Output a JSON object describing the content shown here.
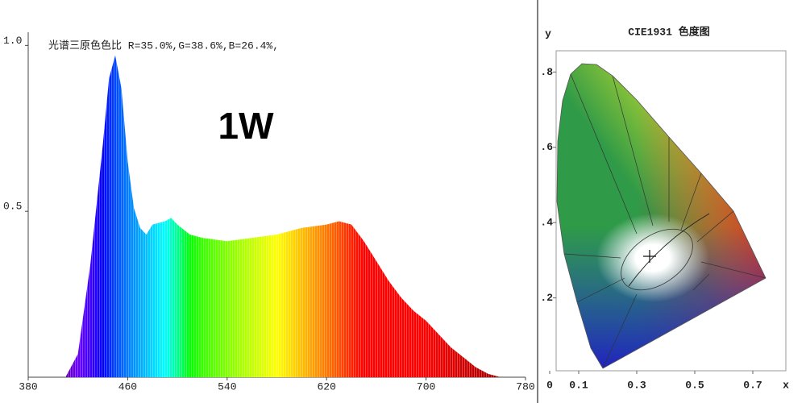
{
  "chart_data": [
    {
      "type": "area",
      "title": "光谱三原色色比  R=35.0%,G=38.6%,B=26.4%,",
      "annotation": "1W",
      "x": [
        400,
        410,
        420,
        430,
        440,
        445,
        450,
        455,
        460,
        465,
        470,
        475,
        480,
        490,
        495,
        500,
        510,
        520,
        540,
        560,
        580,
        600,
        620,
        630,
        640,
        650,
        660,
        670,
        680,
        690,
        700,
        710,
        720,
        730,
        740,
        750,
        760,
        770
      ],
      "values": [
        0,
        0,
        0.07,
        0.34,
        0.7,
        0.9,
        0.97,
        0.87,
        0.65,
        0.51,
        0.45,
        0.43,
        0.46,
        0.47,
        0.48,
        0.46,
        0.43,
        0.42,
        0.41,
        0.42,
        0.43,
        0.45,
        0.46,
        0.47,
        0.46,
        0.41,
        0.35,
        0.29,
        0.24,
        0.2,
        0.17,
        0.13,
        0.09,
        0.06,
        0.03,
        0.01,
        0,
        0
      ],
      "xlim": [
        380,
        780
      ],
      "ylim": [
        0,
        1.03
      ],
      "xticks": [
        380,
        460,
        540,
        620,
        700,
        780
      ],
      "yticks": [
        {
          "value": 0.5,
          "label": "0.5"
        },
        {
          "value": 1,
          "label": "1.0"
        }
      ]
    },
    {
      "type": "chromaticity",
      "title": "CIE1931 色度图",
      "xlabel": "x",
      "ylabel": "y",
      "xlim": [
        0,
        0.8
      ],
      "ylim": [
        0,
        0.85
      ],
      "xticks": [
        0,
        0.1,
        0.3,
        0.5,
        0.7
      ],
      "yticks": [
        {
          "value": 0.2,
          "label": ".2"
        },
        {
          "value": 0.4,
          "label": ".4"
        },
        {
          "value": 0.6,
          "label": ".6"
        },
        {
          "value": 0.8,
          "label": ".8"
        }
      ]
    }
  ]
}
